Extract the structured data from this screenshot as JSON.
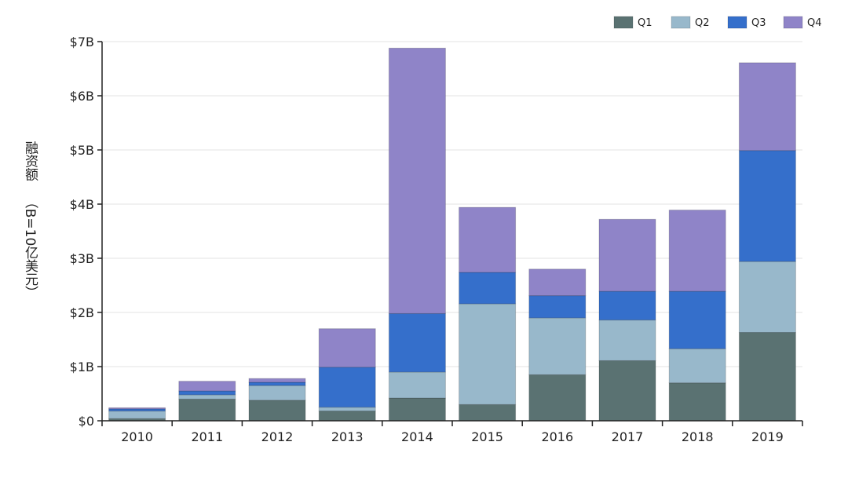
{
  "chart_data": {
    "type": "bar",
    "stacked": true,
    "title": "",
    "xlabel": "",
    "ylabel_line1": "融资额",
    "ylabel_line2": "（B=10亿美元）",
    "ylim": [
      0,
      7
    ],
    "yticks": [
      0,
      1,
      2,
      3,
      4,
      5,
      6,
      7
    ],
    "ytick_labels": [
      "$0",
      "$1B",
      "$2B",
      "$3B",
      "$4B",
      "$5B",
      "$6B",
      "$7B"
    ],
    "categories": [
      "2010",
      "2011",
      "2012",
      "2013",
      "2014",
      "2015",
      "2016",
      "2017",
      "2018",
      "2019"
    ],
    "legend_position": "top-right",
    "series": [
      {
        "name": "Q1",
        "color": "#5a7272",
        "values": [
          0.04,
          0.4,
          0.38,
          0.18,
          0.42,
          0.3,
          0.85,
          1.11,
          0.7,
          1.63
        ]
      },
      {
        "name": "Q2",
        "color": "#98b8cb",
        "values": [
          0.14,
          0.08,
          0.27,
          0.07,
          0.48,
          1.86,
          1.05,
          0.75,
          0.63,
          1.31
        ]
      },
      {
        "name": "Q3",
        "color": "#356fcb",
        "values": [
          0.04,
          0.07,
          0.06,
          0.74,
          1.08,
          0.58,
          0.41,
          0.53,
          1.06,
          2.05
        ]
      },
      {
        "name": "Q4",
        "color": "#8f84c8",
        "values": [
          0.02,
          0.18,
          0.07,
          0.71,
          4.9,
          1.2,
          0.49,
          1.33,
          1.5,
          1.62
        ]
      }
    ]
  }
}
